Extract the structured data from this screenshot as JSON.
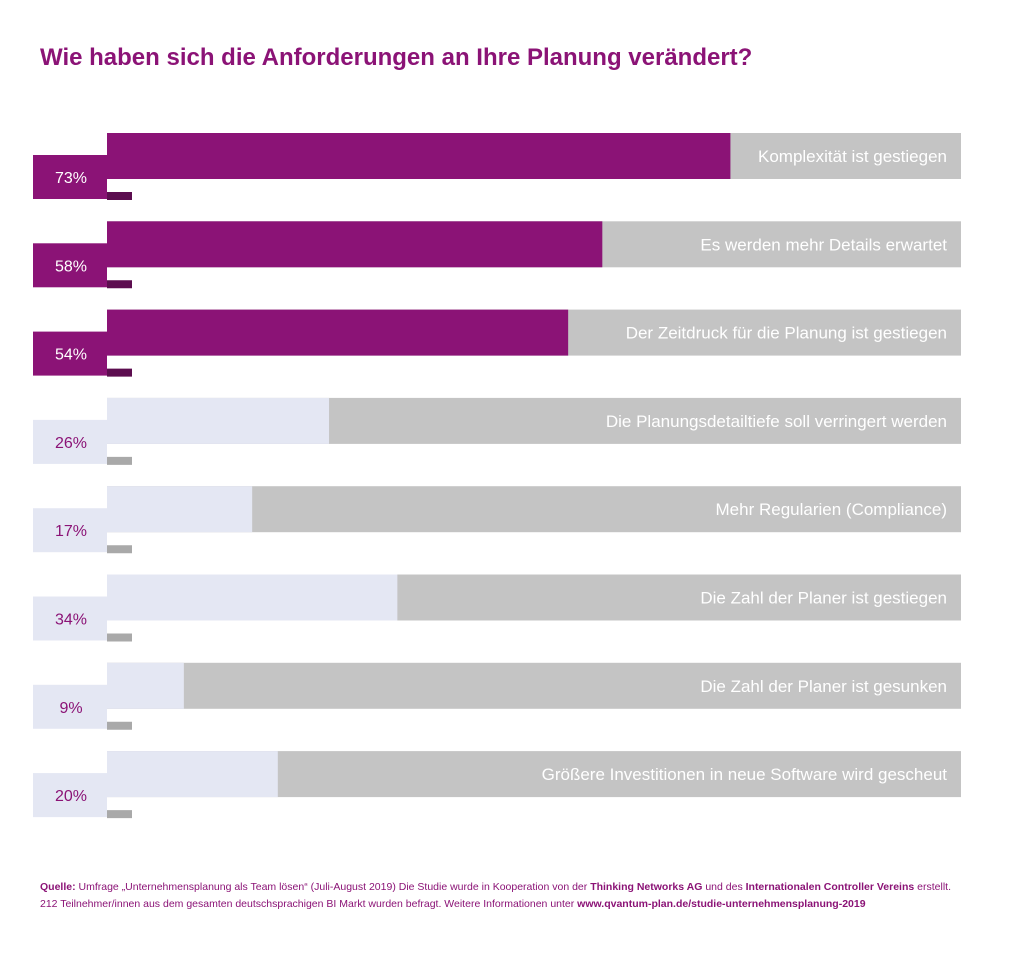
{
  "title": "Wie haben sich die Anforderungen an Ihre Planung verändert?",
  "colors": {
    "highlight": "#8b1376",
    "highlight_shadow": "#5c0d4f",
    "light": "#e4e7f3",
    "light_shadow": "#a9a9a9",
    "track": "#c4c4c4",
    "text_accent": "#8b1376"
  },
  "chart_data": {
    "type": "bar",
    "orientation": "horizontal",
    "xlim": [
      0,
      100
    ],
    "unit": "%",
    "categories": [
      "Komplexität  ist gestiegen",
      "Es werden mehr Details erwartet",
      "Der Zeitdruck für die Planung ist gestiegen",
      "Die Planungsdetailtiefe soll verringert werden",
      "Mehr Regularien (Compliance)",
      "Die Zahl der Planer ist gestiegen",
      "Die Zahl der Planer ist gesunken",
      "Größere Investitionen in neue Software wird gescheut"
    ],
    "values": [
      73,
      58,
      54,
      26,
      17,
      34,
      9,
      20
    ],
    "value_labels": [
      "73%",
      "58%",
      "54%",
      "26%",
      "17%",
      "34%",
      "9%",
      "20%"
    ],
    "highlighted": [
      true,
      true,
      true,
      false,
      false,
      false,
      false,
      false
    ]
  },
  "footer": {
    "source_label": "Quelle:",
    "line1_a": " Umfrage „Unternehmensplanung als Team lösen“ (Juli-August 2019)  Die Studie wurde in Kooperation von der ",
    "partner1": "Thinking Networks AG",
    "line1_b": " und des ",
    "partner2": "Internationalen Controller Vereins",
    "line1_c": " erstellt.",
    "line2_a": "212 Teilnehmer/innen aus dem gesamten deutschsprachigen BI Markt wurden befragt. Weitere Informationen unter ",
    "url": "www.qvantum-plan.de/studie-unternehmensplanung-2019"
  }
}
